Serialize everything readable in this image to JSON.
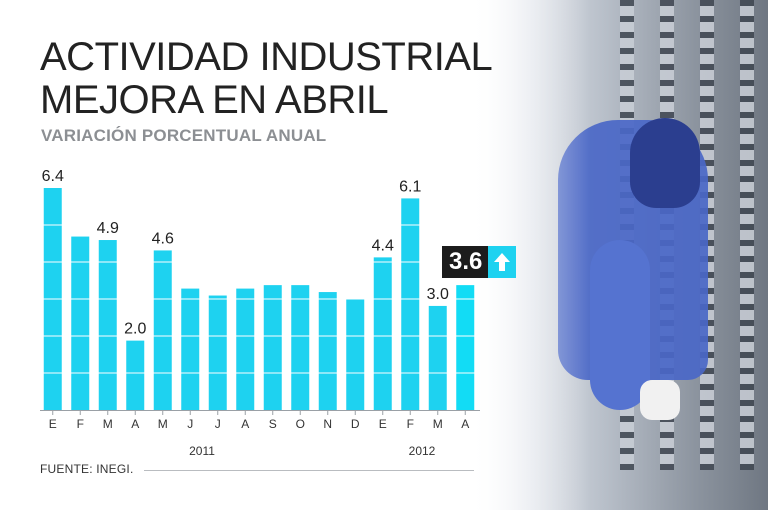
{
  "header": {
    "title_line1": "ACTIVIDAD INDUSTRIAL",
    "title_line2": "MEJORA EN ABRIL",
    "subtitle": "VARIACIÓN PORCENTUAL ANUAL"
  },
  "source": "FUENTE: INEGI.",
  "highlight": {
    "value": "3.6",
    "direction": "up",
    "icon": "arrow-up-icon"
  },
  "colors": {
    "bar": "#1ed2f0",
    "highlight_bg": "#1c1c1c",
    "arrow_bg": "#1ed2f0"
  },
  "chart_data": {
    "type": "bar",
    "title": "ACTIVIDAD INDUSTRIAL MEJORA EN ABRIL",
    "subtitle": "VARIACIÓN PORCENTUAL ANUAL",
    "categories": [
      "E",
      "F",
      "M",
      "A",
      "M",
      "J",
      "J",
      "A",
      "S",
      "O",
      "N",
      "D",
      "E",
      "F",
      "M",
      "A"
    ],
    "values": [
      6.4,
      5.0,
      4.9,
      2.0,
      4.6,
      3.5,
      3.3,
      3.5,
      3.6,
      3.6,
      3.4,
      3.2,
      4.4,
      6.1,
      3.0,
      3.6
    ],
    "labels": [
      "6.4",
      null,
      "4.9",
      "2.0",
      "4.6",
      null,
      null,
      null,
      null,
      null,
      null,
      null,
      "4.4",
      "6.1",
      "3.0",
      null
    ],
    "years": [
      {
        "label": "2011",
        "from": 0,
        "to": 11
      },
      {
        "label": "2012",
        "from": 12,
        "to": 15
      }
    ],
    "ylim": [
      0,
      7
    ],
    "xlabel": "",
    "ylabel": ""
  }
}
